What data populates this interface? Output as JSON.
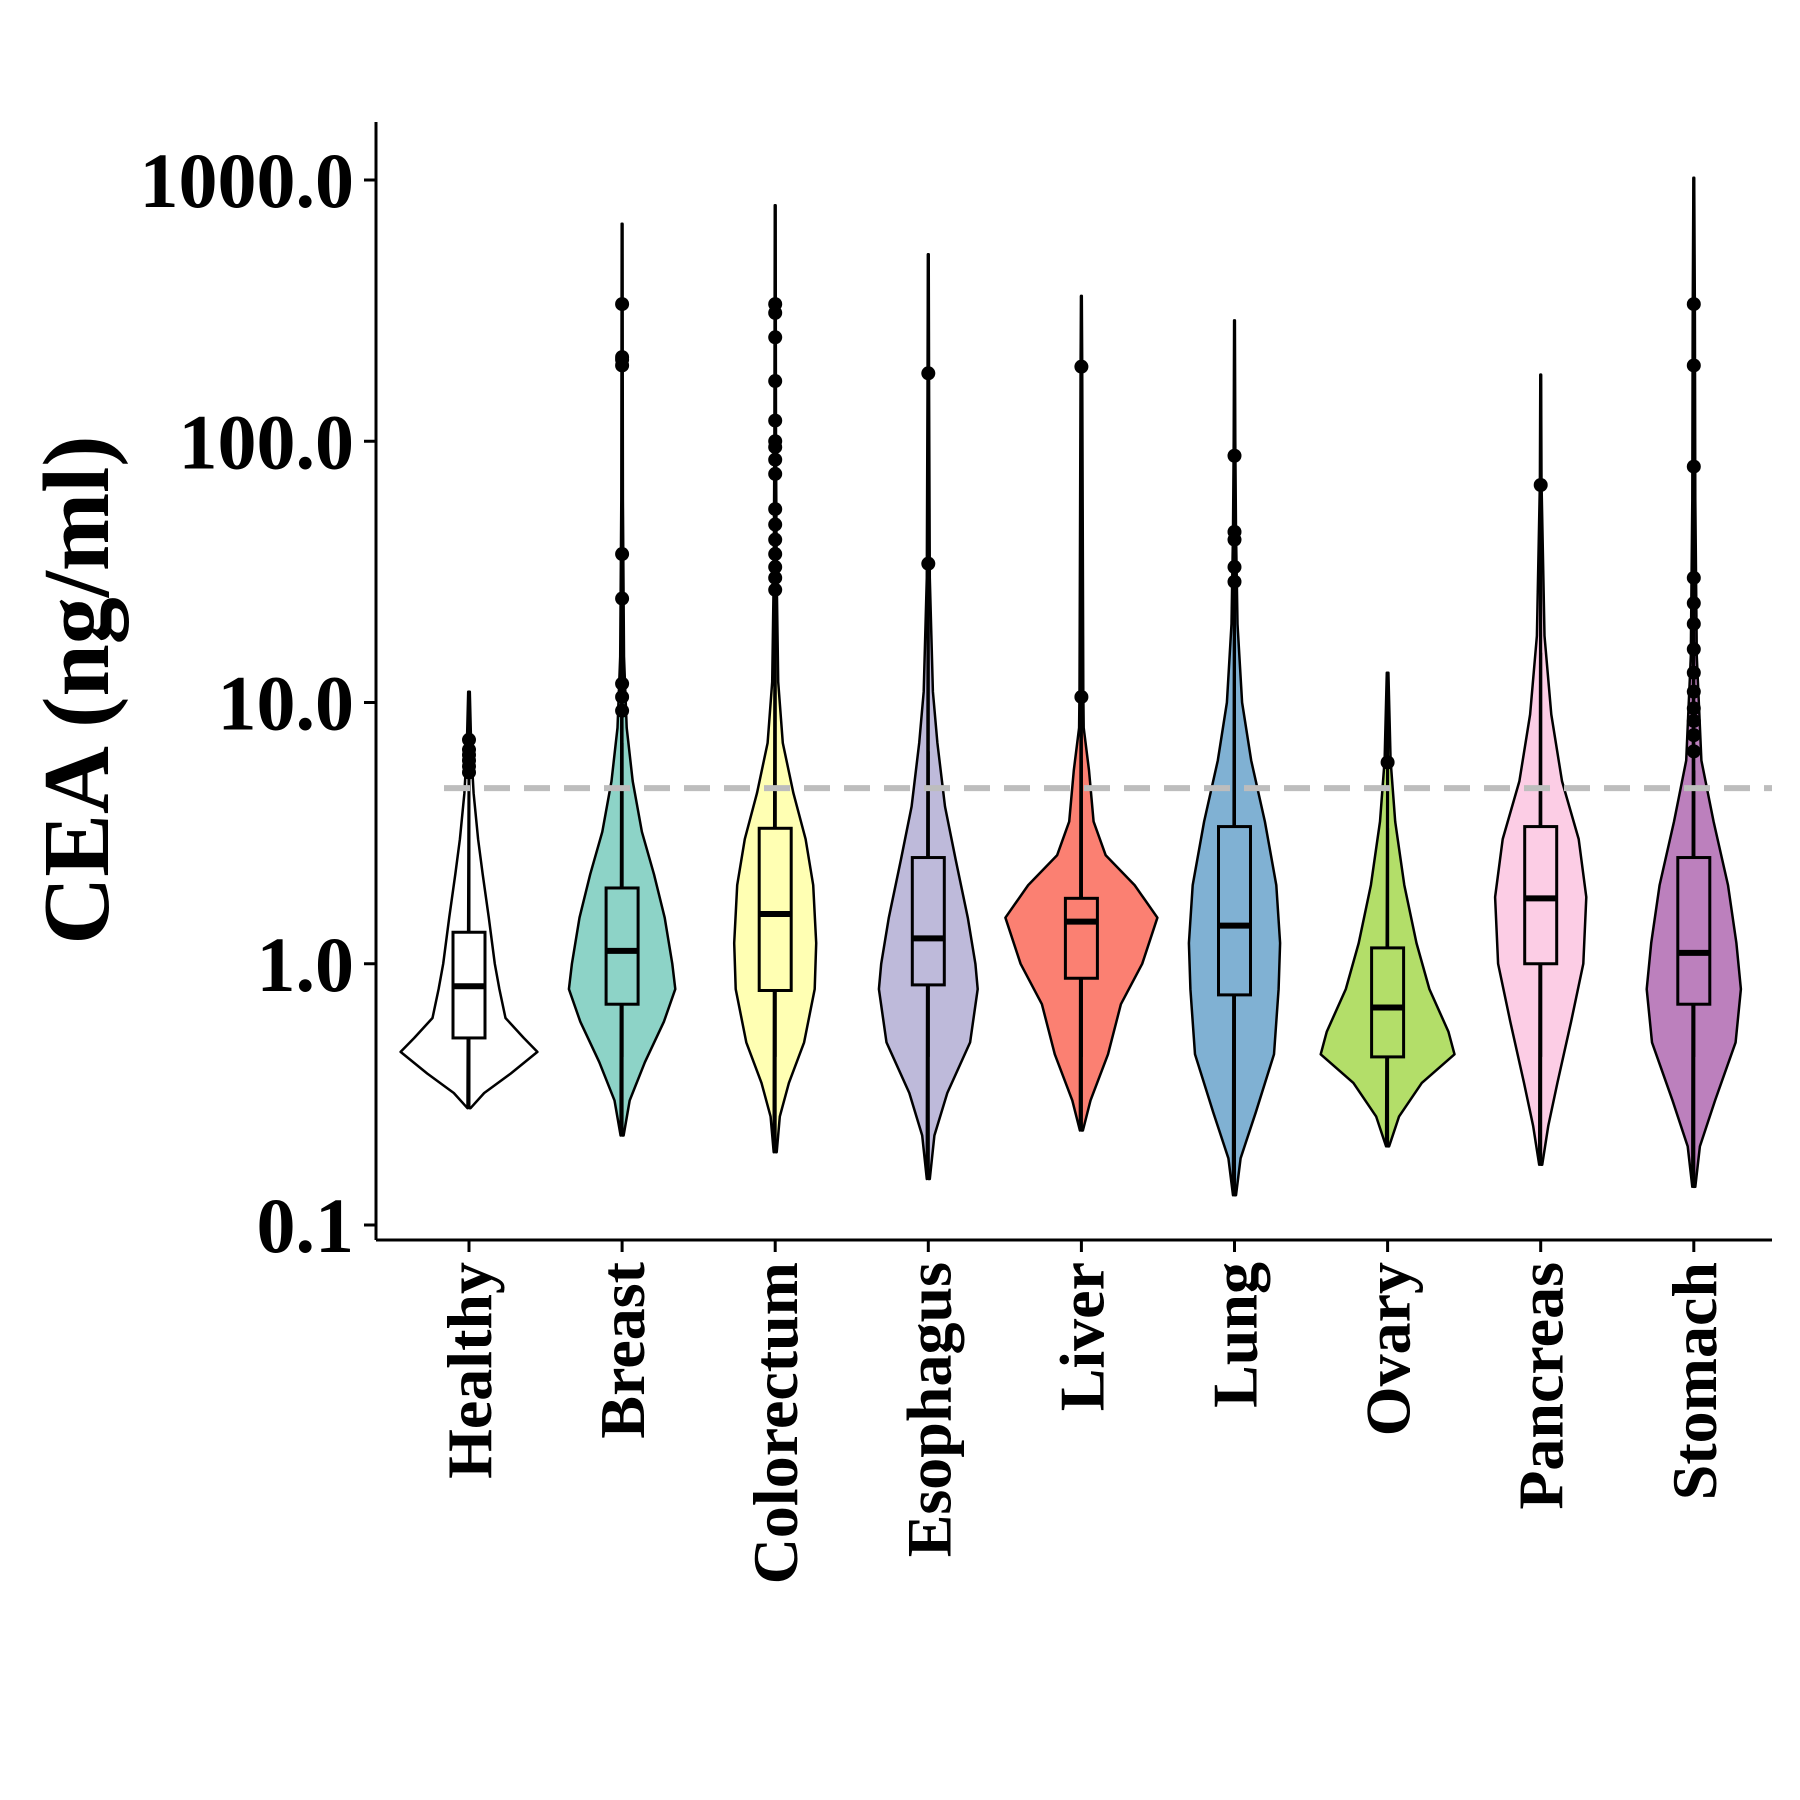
{
  "chart_data": {
    "type": "violin",
    "ylabel": "CEA (ng/ml)",
    "xlabel": "",
    "y_scale": "log10",
    "ylim": [
      0.1,
      1000
    ],
    "y_ticks": [
      0.1,
      1,
      10,
      100,
      1000
    ],
    "y_tick_labels": [
      "0.1",
      "1.0",
      "10.0",
      "100.0",
      "1000.0"
    ],
    "reference_line": {
      "value": 4.7,
      "style": "dashed",
      "color": "#bdbdbd"
    },
    "grid": false,
    "legend": "none",
    "categories": [
      "Healthy",
      "Breast",
      "Colorectum",
      "Esophagus",
      "Liver",
      "Lung",
      "Ovary",
      "Pancreas",
      "Stomach"
    ],
    "groups": [
      {
        "name": "Healthy",
        "color": "#ffffff",
        "violin_min": 0.28,
        "violin_max": 11,
        "density": [
          [
            0.28,
            0.02
          ],
          [
            0.32,
            0.2
          ],
          [
            0.38,
            0.55
          ],
          [
            0.46,
            0.9
          ],
          [
            0.52,
            0.72
          ],
          [
            0.62,
            0.48
          ],
          [
            0.8,
            0.4
          ],
          [
            1.0,
            0.34
          ],
          [
            1.5,
            0.26
          ],
          [
            2.2,
            0.18
          ],
          [
            3.0,
            0.12
          ],
          [
            4.5,
            0.06
          ],
          [
            6.5,
            0.03
          ],
          [
            11,
            0.01
          ]
        ],
        "box": {
          "q1": 0.52,
          "median": 0.82,
          "q3": 1.32,
          "whisker_low": 0.43,
          "whisker_high": 4.5
        },
        "outliers": [
          5.4,
          5.7,
          6.0,
          6.3,
          6.6,
          7.2
        ]
      },
      {
        "name": "Breast",
        "color": "#8dd3c7",
        "violin_min": 0.22,
        "violin_max": 680,
        "density": [
          [
            0.22,
            0.02
          ],
          [
            0.3,
            0.1
          ],
          [
            0.42,
            0.3
          ],
          [
            0.6,
            0.55
          ],
          [
            0.8,
            0.7
          ],
          [
            1.0,
            0.66
          ],
          [
            1.5,
            0.56
          ],
          [
            2.2,
            0.42
          ],
          [
            3.2,
            0.26
          ],
          [
            5.0,
            0.14
          ],
          [
            8,
            0.06
          ],
          [
            15,
            0.025
          ],
          [
            60,
            0.01
          ],
          [
            680,
            0.005
          ]
        ],
        "box": {
          "q1": 0.7,
          "median": 1.12,
          "q3": 1.95,
          "whisker_low": 0.44,
          "whisker_high": 7.0
        },
        "outliers": [
          9.3,
          10.5,
          11.8,
          25,
          37,
          195,
          205,
          210,
          335
        ]
      },
      {
        "name": "Colorectum",
        "color": "#ffffb3",
        "violin_min": 0.19,
        "violin_max": 800,
        "density": [
          [
            0.19,
            0.02
          ],
          [
            0.26,
            0.06
          ],
          [
            0.35,
            0.18
          ],
          [
            0.5,
            0.38
          ],
          [
            0.8,
            0.52
          ],
          [
            1.2,
            0.54
          ],
          [
            2.0,
            0.5
          ],
          [
            3.0,
            0.4
          ],
          [
            4.5,
            0.24
          ],
          [
            7,
            0.1
          ],
          [
            12,
            0.04
          ],
          [
            30,
            0.02
          ],
          [
            100,
            0.01
          ],
          [
            800,
            0.005
          ]
        ],
        "box": {
          "q1": 0.79,
          "median": 1.55,
          "q3": 3.3,
          "whisker_low": 0.44,
          "whisker_high": 26
        },
        "outliers": [
          27,
          30,
          33,
          37,
          42,
          48,
          55,
          75,
          85,
          95,
          100,
          120,
          170,
          250,
          310,
          335
        ]
      },
      {
        "name": "Esophagus",
        "color": "#bebada",
        "violin_min": 0.15,
        "violin_max": 520,
        "density": [
          [
            0.15,
            0.02
          ],
          [
            0.22,
            0.08
          ],
          [
            0.32,
            0.25
          ],
          [
            0.5,
            0.55
          ],
          [
            0.8,
            0.65
          ],
          [
            1.0,
            0.62
          ],
          [
            1.5,
            0.52
          ],
          [
            2.5,
            0.36
          ],
          [
            4.0,
            0.22
          ],
          [
            7,
            0.12
          ],
          [
            11,
            0.06
          ],
          [
            30,
            0.02
          ],
          [
            150,
            0.01
          ],
          [
            520,
            0.005
          ]
        ],
        "box": {
          "q1": 0.83,
          "median": 1.25,
          "q3": 2.55,
          "whisker_low": 0.44,
          "whisker_high": 6.5
        },
        "outliers": [
          34,
          182
        ]
      },
      {
        "name": "Liver",
        "color": "#fb8072",
        "violin_min": 0.23,
        "violin_max": 360,
        "density": [
          [
            0.23,
            0.02
          ],
          [
            0.3,
            0.12
          ],
          [
            0.45,
            0.35
          ],
          [
            0.7,
            0.52
          ],
          [
            1.0,
            0.8
          ],
          [
            1.5,
            1.0
          ],
          [
            2.0,
            0.7
          ],
          [
            2.6,
            0.32
          ],
          [
            3.5,
            0.16
          ],
          [
            5.5,
            0.1
          ],
          [
            8,
            0.03
          ],
          [
            11,
            0.025
          ],
          [
            200,
            0.01
          ],
          [
            360,
            0.005
          ]
        ],
        "box": {
          "q1": 0.88,
          "median": 1.45,
          "q3": 1.78,
          "whisker_low": 0.44,
          "whisker_high": 6.0
        },
        "outliers": [
          10.5,
          193
        ]
      },
      {
        "name": "Lung",
        "color": "#80b1d3",
        "violin_min": 0.13,
        "violin_max": 290,
        "density": [
          [
            0.13,
            0.02
          ],
          [
            0.18,
            0.08
          ],
          [
            0.27,
            0.28
          ],
          [
            0.45,
            0.52
          ],
          [
            0.8,
            0.58
          ],
          [
            1.2,
            0.6
          ],
          [
            2.0,
            0.55
          ],
          [
            3.5,
            0.4
          ],
          [
            6.0,
            0.22
          ],
          [
            10,
            0.1
          ],
          [
            20,
            0.04
          ],
          [
            45,
            0.02
          ],
          [
            100,
            0.01
          ],
          [
            290,
            0.005
          ]
        ],
        "box": {
          "q1": 0.76,
          "median": 1.4,
          "q3": 3.35,
          "whisker_low": 0.44,
          "whisker_high": 10.5
        },
        "outliers": [
          29,
          33,
          42,
          45,
          88
        ]
      },
      {
        "name": "Ovary",
        "color": "#b3de69",
        "violin_min": 0.2,
        "violin_max": 13,
        "density": [
          [
            0.2,
            0.02
          ],
          [
            0.26,
            0.15
          ],
          [
            0.35,
            0.45
          ],
          [
            0.45,
            0.88
          ],
          [
            0.55,
            0.8
          ],
          [
            0.8,
            0.55
          ],
          [
            1.2,
            0.38
          ],
          [
            2.0,
            0.22
          ],
          [
            3.5,
            0.1
          ],
          [
            6,
            0.04
          ],
          [
            13,
            0.01
          ]
        ],
        "box": {
          "q1": 0.44,
          "median": 0.68,
          "q3": 1.15,
          "whisker_low": 0.44,
          "whisker_high": 3.3
        },
        "outliers": [
          5.9
        ]
      },
      {
        "name": "Pancreas",
        "color": "#fccde5",
        "violin_min": 0.17,
        "violin_max": 180,
        "density": [
          [
            0.17,
            0.02
          ],
          [
            0.24,
            0.1
          ],
          [
            0.35,
            0.22
          ],
          [
            0.6,
            0.4
          ],
          [
            1.0,
            0.56
          ],
          [
            1.8,
            0.6
          ],
          [
            3.0,
            0.5
          ],
          [
            5.0,
            0.28
          ],
          [
            9,
            0.14
          ],
          [
            18,
            0.05
          ],
          [
            70,
            0.01
          ],
          [
            180,
            0.005
          ]
        ],
        "box": {
          "q1": 1.0,
          "median": 1.78,
          "q3": 3.35,
          "whisker_low": 0.44,
          "whisker_high": 15.5
        },
        "outliers": [
          68
        ]
      },
      {
        "name": "Stomach",
        "color": "#bc80bd",
        "violin_min": 0.14,
        "violin_max": 1020,
        "density": [
          [
            0.14,
            0.02
          ],
          [
            0.2,
            0.08
          ],
          [
            0.3,
            0.28
          ],
          [
            0.5,
            0.55
          ],
          [
            0.8,
            0.62
          ],
          [
            1.2,
            0.56
          ],
          [
            2.0,
            0.45
          ],
          [
            3.5,
            0.26
          ],
          [
            6,
            0.1
          ],
          [
            15,
            0.04
          ],
          [
            60,
            0.02
          ],
          [
            300,
            0.015
          ],
          [
            1020,
            0.005
          ]
        ],
        "box": {
          "q1": 0.7,
          "median": 1.1,
          "q3": 2.55,
          "whisker_low": 0.44,
          "whisker_high": 5.5
        },
        "outliers": [
          6.5,
          7.5,
          8.5,
          9.5,
          11,
          13,
          16,
          20,
          24,
          30,
          80,
          195,
          335
        ]
      }
    ]
  }
}
